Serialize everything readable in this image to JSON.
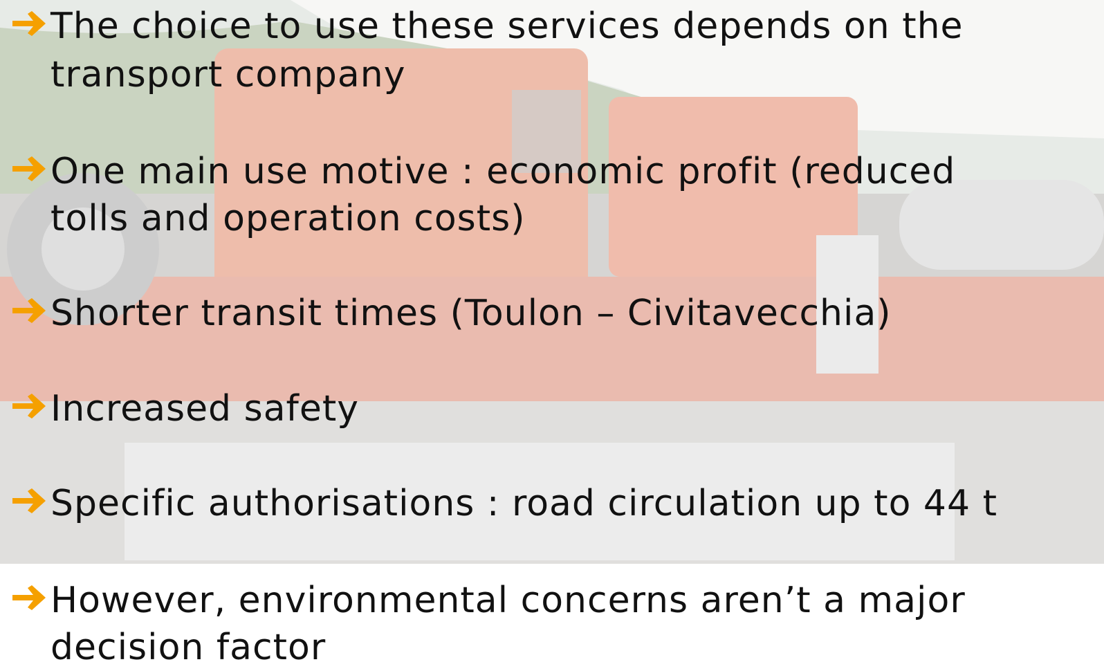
{
  "bullets": [
    {
      "lines": [
        "The choice to use these services depends on the",
        "transport company"
      ]
    },
    {
      "lines": [
        "One main use motive : economic profit (reduced",
        "tolls and operation costs)"
      ]
    },
    {
      "lines": [
        "Shorter transit times (Toulon – Civitavecchia)"
      ]
    },
    {
      "lines": [
        "Increased safety"
      ]
    },
    {
      "lines": [
        "Specific authorisations : road circulation up to 44 t"
      ]
    },
    {
      "lines": [
        "However, environmental concerns aren’t a major",
        "decision factor"
      ]
    }
  ]
}
